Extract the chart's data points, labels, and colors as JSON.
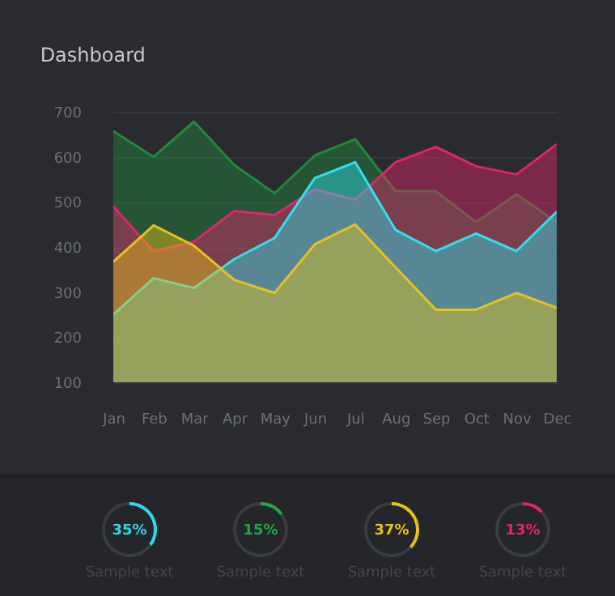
{
  "chart_data": [
    {
      "type": "area",
      "title": "Dashboard",
      "categories": [
        "Jan",
        "Feb",
        "Mar",
        "Apr",
        "May",
        "Jun",
        "Jul",
        "Aug",
        "Sep",
        "Oct",
        "Nov",
        "Dec"
      ],
      "ylim": [
        100,
        700
      ],
      "yticks": [
        100,
        200,
        300,
        400,
        500,
        600,
        700
      ],
      "grid": "y",
      "series": [
        {
          "color": "#1f8a3a",
          "values": [
            657,
            600,
            678,
            582,
            519,
            603,
            639,
            524,
            524,
            455,
            517,
            455
          ]
        },
        {
          "color": "#e0256b",
          "values": [
            490,
            390,
            412,
            480,
            471,
            528,
            505,
            588,
            622,
            579,
            561,
            628
          ]
        },
        {
          "color": "#2fe0f0",
          "values": [
            250,
            331,
            309,
            373,
            420,
            553,
            588,
            438,
            391,
            430,
            391,
            478
          ]
        },
        {
          "color": "#e6c21a",
          "values": [
            367,
            448,
            403,
            327,
            298,
            406,
            450,
            355,
            261,
            261,
            298,
            265
          ]
        }
      ]
    },
    {
      "type": "donut",
      "title": "Sample text",
      "categories": [
        null,
        null
      ],
      "values": [
        35,
        65
      ],
      "colors": [
        "#2fd8e8",
        "#3a3c44"
      ],
      "annotations": [
        "35%"
      ]
    },
    {
      "type": "donut",
      "title": "Sample text",
      "categories": [
        null,
        null
      ],
      "values": [
        15,
        85
      ],
      "colors": [
        "#22a845",
        "#3a3c44"
      ],
      "annotations": [
        "15%"
      ]
    },
    {
      "type": "donut",
      "title": "Sample text",
      "categories": [
        null,
        null
      ],
      "values": [
        37,
        63
      ],
      "colors": [
        "#e6c21a",
        "#3a3c44"
      ],
      "annotations": [
        "37%"
      ]
    },
    {
      "type": "donut",
      "title": "Sample text",
      "categories": [
        null,
        null
      ],
      "values": [
        13,
        87
      ],
      "colors": [
        "#e0256b",
        "#3a3c44"
      ],
      "annotations": [
        "13%"
      ]
    }
  ]
}
